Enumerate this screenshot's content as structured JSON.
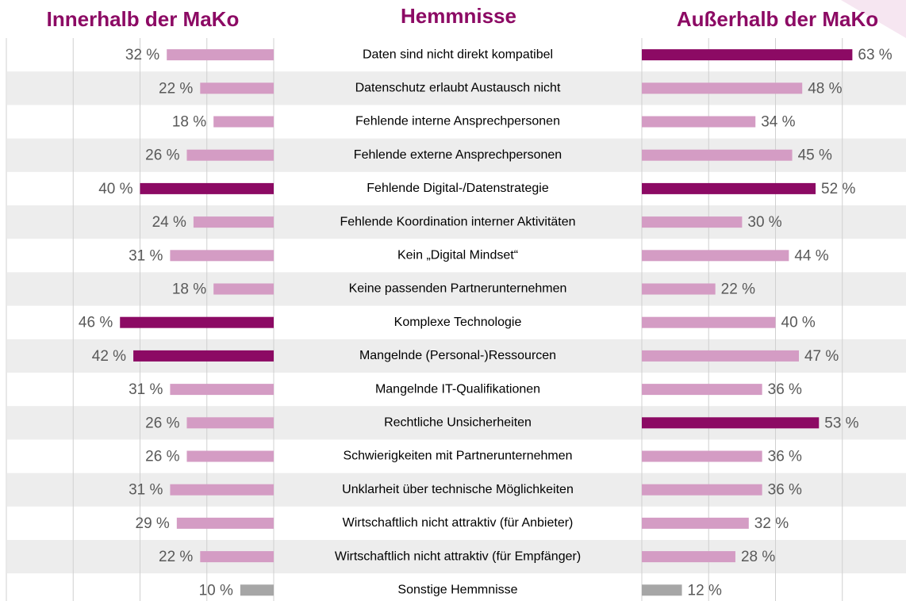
{
  "chart_data": {
    "type": "butterfly_bar",
    "title": "Hemmnisse",
    "categories": [
      "Daten sind nicht direkt kompatibel",
      "Datenschutz erlaubt Austausch nicht",
      "Fehlende interne Ansprechpersonen",
      "Fehlende externe Ansprechpersonen",
      "Fehlende Digital-/Datenstrategie",
      "Fehlende Koordination interner Aktivitäten",
      "Kein „Digital Mindset“",
      "Keine passenden Partnerunternehmen",
      "Komplexe Technologie",
      "Mangelnde (Personal-)Ressourcen",
      "Mangelnde IT-Qualifikationen",
      "Rechtliche Unsicherheiten",
      "Schwierigkeiten mit Partnerunternehmen",
      "Unklarheit über technische Möglichkeiten",
      "Wirtschaftlich nicht attraktiv (für Anbieter)",
      "Wirtschaftlich nicht attraktiv (für Empfänger)",
      "Sonstige Hemmnisse"
    ],
    "series": [
      {
        "name": "Innerhalb der MaKo",
        "side": "left",
        "values": [
          32,
          22,
          18,
          26,
          40,
          24,
          31,
          18,
          46,
          42,
          31,
          26,
          26,
          31,
          29,
          22,
          10
        ],
        "value_labels": [
          "32 %",
          "22 %",
          "18 %",
          "26 %",
          "40 %",
          "24 %",
          "31 %",
          "18 %",
          "46 %",
          "42 %",
          "31 %",
          "26 %",
          "26 %",
          "31 %",
          "29 %",
          "22 %",
          "10 %"
        ],
        "colors": [
          "#d49cc4",
          "#d49cc4",
          "#d49cc4",
          "#d49cc4",
          "#8c0a64",
          "#d49cc4",
          "#d49cc4",
          "#d49cc4",
          "#8c0a64",
          "#8c0a64",
          "#d49cc4",
          "#d49cc4",
          "#d49cc4",
          "#d49cc4",
          "#d49cc4",
          "#d49cc4",
          "#a6a6a6"
        ]
      },
      {
        "name": "Außerhalb der MaKo",
        "side": "right",
        "values": [
          63,
          48,
          34,
          45,
          52,
          30,
          44,
          22,
          40,
          47,
          36,
          53,
          36,
          36,
          32,
          28,
          12
        ],
        "value_labels": [
          "63 %",
          "48 %",
          "34 %",
          "45 %",
          "52 %",
          "30 %",
          "44 %",
          "22 %",
          "40 %",
          "47 %",
          "36 %",
          "53 %",
          "36 %",
          "36 %",
          "32 %",
          "28 %",
          "12 %"
        ],
        "colors": [
          "#8c0a64",
          "#d49cc4",
          "#d49cc4",
          "#d49cc4",
          "#8c0a64",
          "#d49cc4",
          "#d49cc4",
          "#d49cc4",
          "#d49cc4",
          "#d49cc4",
          "#d49cc4",
          "#8c0a64",
          "#d49cc4",
          "#d49cc4",
          "#d49cc4",
          "#d49cc4",
          "#a6a6a6"
        ]
      }
    ],
    "xlim": [
      0,
      80
    ],
    "xticks": [
      0,
      20,
      40,
      60,
      80
    ],
    "grid": true,
    "title_color": "#8c0a64"
  }
}
